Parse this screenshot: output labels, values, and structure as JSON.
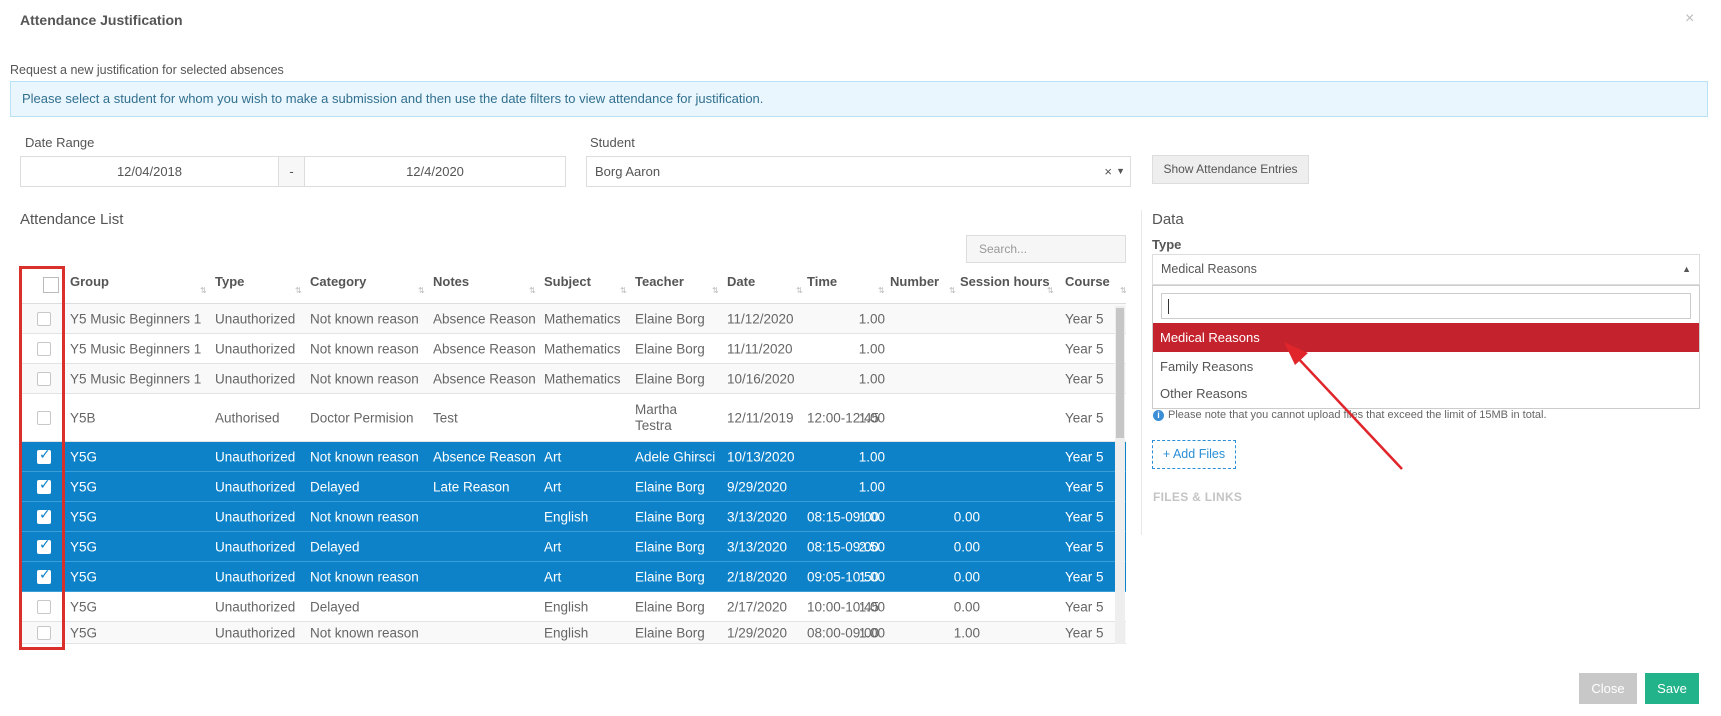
{
  "modal": {
    "title": "Attendance Justification",
    "close_icon": "×",
    "subtitle": "Request a new justification for selected absences",
    "info": "Please select a student for whom you wish to make a submission and then use the date filters to view attendance for justification."
  },
  "filters": {
    "date_range_label": "Date Range",
    "date_from": "12/04/2018",
    "date_separator": "-",
    "date_to": "12/4/2020",
    "student_label": "Student",
    "student_value": "Borg Aaron",
    "clear_icon": "×",
    "caret_icon": "▼",
    "show_button": "Show Attendance Entries"
  },
  "attendance": {
    "label": "Attendance List",
    "search_placeholder": "Search...",
    "columns": [
      "Group",
      "Type",
      "Category",
      "Notes",
      "Subject",
      "Teacher",
      "Date",
      "Time",
      "Number",
      "Session hours",
      "Course"
    ],
    "rows": [
      {
        "checked": false,
        "group": "Y5 Music Beginners 1",
        "type": "Unauthorized",
        "category": "Not known reason",
        "notes": "Absence Reason",
        "subject": "Mathematics",
        "teacher": "Elaine Borg",
        "date": "11/12/2020",
        "time": "",
        "number": "1.00",
        "session_hours": "",
        "course": "Year 5"
      },
      {
        "checked": false,
        "group": "Y5 Music Beginners 1",
        "type": "Unauthorized",
        "category": "Not known reason",
        "notes": "Absence Reason",
        "subject": "Mathematics",
        "teacher": "Elaine Borg",
        "date": "11/11/2020",
        "time": "",
        "number": "1.00",
        "session_hours": "",
        "course": "Year 5"
      },
      {
        "checked": false,
        "group": "Y5 Music Beginners 1",
        "type": "Unauthorized",
        "category": "Not known reason",
        "notes": "Absence Reason",
        "subject": "Mathematics",
        "teacher": "Elaine Borg",
        "date": "10/16/2020",
        "time": "",
        "number": "1.00",
        "session_hours": "",
        "course": "Year 5"
      },
      {
        "checked": false,
        "group": "Y5B",
        "type": "Authorised",
        "category": "Doctor Permision",
        "notes": "Test",
        "subject": "",
        "teacher": "Martha Testra",
        "date": "12/11/2019",
        "time": "12:00-12:45",
        "number": "1.00",
        "session_hours": "",
        "course": "Year 5"
      },
      {
        "checked": true,
        "group": "Y5G",
        "type": "Unauthorized",
        "category": "Not known reason",
        "notes": "Absence Reason",
        "subject": "Art",
        "teacher": "Adele Ghirsci",
        "date": "10/13/2020",
        "time": "",
        "number": "1.00",
        "session_hours": "",
        "course": "Year 5"
      },
      {
        "checked": true,
        "group": "Y5G",
        "type": "Unauthorized",
        "category": "Delayed",
        "notes": "Late Reason",
        "subject": "Art",
        "teacher": "Elaine Borg",
        "date": "9/29/2020",
        "time": "",
        "number": "1.00",
        "session_hours": "",
        "course": "Year 5"
      },
      {
        "checked": true,
        "group": "Y5G",
        "type": "Unauthorized",
        "category": "Not known reason",
        "notes": "",
        "subject": "English",
        "teacher": "Elaine Borg",
        "date": "3/13/2020",
        "time": "08:15-09:00",
        "number": "1.00",
        "session_hours": "0.00",
        "course": "Year 5"
      },
      {
        "checked": true,
        "group": "Y5G",
        "type": "Unauthorized",
        "category": "Delayed",
        "notes": "",
        "subject": "Art",
        "teacher": "Elaine Borg",
        "date": "3/13/2020",
        "time": "08:15-09:00",
        "number": "2.50",
        "session_hours": "0.00",
        "course": "Year 5"
      },
      {
        "checked": true,
        "group": "Y5G",
        "type": "Unauthorized",
        "category": "Not known reason",
        "notes": "",
        "subject": "Art",
        "teacher": "Elaine Borg",
        "date": "2/18/2020",
        "time": "09:05-10:50",
        "number": "1.00",
        "session_hours": "0.00",
        "course": "Year 5"
      },
      {
        "checked": false,
        "group": "Y5G",
        "type": "Unauthorized",
        "category": "Delayed",
        "notes": "",
        "subject": "English",
        "teacher": "Elaine Borg",
        "date": "2/17/2020",
        "time": "10:00-10:45",
        "number": "1.00",
        "session_hours": "0.00",
        "course": "Year 5"
      },
      {
        "checked": false,
        "group": "Y5G",
        "type": "Unauthorized",
        "category": "Not known reason",
        "notes": "",
        "subject": "English",
        "teacher": "Elaine Borg",
        "date": "1/29/2020",
        "time": "08:00-09:00",
        "number": "1.00",
        "session_hours": "1.00",
        "course": "Year 5"
      }
    ]
  },
  "data_panel": {
    "label": "Data",
    "type_label": "Type",
    "type_value": "Medical Reasons",
    "caret_icon": "▲",
    "options": [
      "Medical Reasons",
      "Family Reasons",
      "Other Reasons"
    ],
    "highlighted_option": "Medical Reasons",
    "note_icon": "i",
    "note": "Please note that you cannot upload files that exceed the limit of 15MB in total.",
    "add_files": "+ Add Files",
    "files_links": "FILES & LINKS"
  },
  "footer": {
    "close": "Close",
    "save": "Save"
  },
  "colors": {
    "selected_row": "#0d82c9",
    "highlight_option": "#c4232d",
    "save": "#22b38a",
    "annotation": "#d9302c"
  }
}
